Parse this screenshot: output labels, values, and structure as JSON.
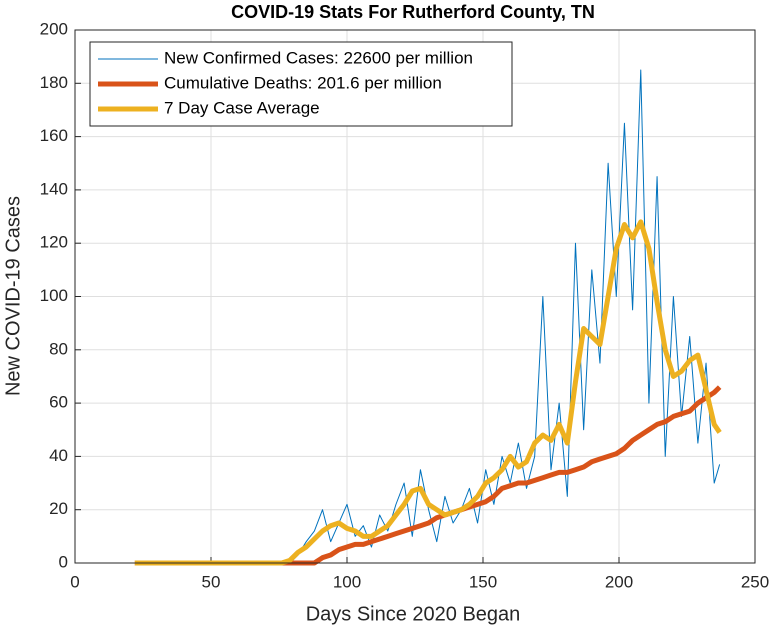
{
  "chart_data": {
    "type": "line",
    "title": "COVID-19 Stats For Rutherford County, TN",
    "xlabel": "Days Since 2020 Began",
    "ylabel": "New COVID-19 Cases",
    "x": [
      22,
      25,
      28,
      31,
      34,
      37,
      40,
      43,
      46,
      49,
      52,
      55,
      58,
      61,
      64,
      67,
      70,
      73,
      76,
      79,
      82,
      85,
      88,
      91,
      94,
      97,
      100,
      103,
      106,
      109,
      112,
      115,
      118,
      121,
      124,
      127,
      130,
      133,
      136,
      139,
      142,
      145,
      148,
      151,
      154,
      157,
      160,
      163,
      166,
      169,
      172,
      175,
      178,
      181,
      184,
      187,
      190,
      193,
      196,
      199,
      202,
      205,
      208,
      211,
      214,
      217,
      220,
      223,
      226,
      229,
      232,
      235,
      237
    ],
    "series": [
      {
        "name": "New Confirmed Cases: 22600 per million",
        "color": "#0072BD",
        "width": 1,
        "values": [
          0,
          0,
          0,
          0,
          0,
          0,
          0,
          0,
          0,
          0,
          0,
          0,
          0,
          0,
          0,
          0,
          0,
          0,
          0,
          0,
          3,
          8,
          12,
          20,
          8,
          15,
          22,
          10,
          14,
          6,
          18,
          12,
          22,
          30,
          10,
          35,
          20,
          8,
          25,
          15,
          20,
          28,
          15,
          35,
          22,
          40,
          30,
          45,
          28,
          40,
          100,
          35,
          60,
          25,
          120,
          50,
          110,
          75,
          150,
          100,
          165,
          95,
          185,
          60,
          145,
          40,
          100,
          55,
          85,
          45,
          75,
          30,
          37
        ]
      },
      {
        "name": "Cumulative Deaths: 201.6 per million",
        "color": "#D95319",
        "width": 5,
        "values": [
          0,
          0,
          0,
          0,
          0,
          0,
          0,
          0,
          0,
          0,
          0,
          0,
          0,
          0,
          0,
          0,
          0,
          0,
          0,
          0,
          0,
          0,
          0,
          2,
          3,
          5,
          6,
          7,
          7,
          8,
          9,
          10,
          11,
          12,
          13,
          14,
          15,
          17,
          18,
          19,
          20,
          21,
          22,
          23,
          25,
          28,
          29,
          30,
          30,
          31,
          32,
          33,
          34,
          34,
          35,
          36,
          38,
          39,
          40,
          41,
          43,
          46,
          48,
          50,
          52,
          53,
          55,
          56,
          57,
          60,
          62,
          64,
          66
        ]
      },
      {
        "name": "7 Day Case Average",
        "color": "#EDB120",
        "width": 5,
        "values": [
          0,
          0,
          0,
          0,
          0,
          0,
          0,
          0,
          0,
          0,
          0,
          0,
          0,
          0,
          0,
          0,
          0,
          0,
          0,
          1,
          4,
          6,
          9,
          12,
          14,
          15,
          13,
          12,
          10,
          10,
          12,
          14,
          18,
          22,
          27,
          28,
          22,
          20,
          18,
          19,
          20,
          22,
          25,
          30,
          32,
          35,
          40,
          36,
          38,
          45,
          48,
          46,
          52,
          45,
          68,
          88,
          85,
          82,
          100,
          118,
          127,
          122,
          128,
          118,
          98,
          80,
          70,
          72,
          76,
          78,
          65,
          52,
          49
        ]
      }
    ],
    "xlim": [
      0,
      250
    ],
    "xticks": [
      0,
      50,
      100,
      150,
      200,
      250
    ],
    "ylim": [
      0,
      200
    ],
    "yticks": [
      0,
      20,
      40,
      60,
      80,
      100,
      120,
      140,
      160,
      180,
      200
    ],
    "grid": true,
    "legend": "upper-left"
  }
}
